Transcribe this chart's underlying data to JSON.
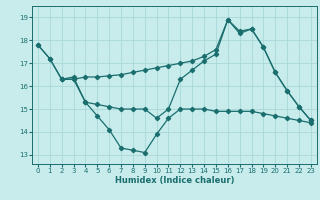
{
  "title": "",
  "xlabel": "Humidex (Indice chaleur)",
  "ylabel": "",
  "bg_color": "#c8ecec",
  "grid_color": "#a8d8d8",
  "line_color": "#1a6e6e",
  "x_ticks": [
    0,
    1,
    2,
    3,
    4,
    5,
    6,
    7,
    8,
    9,
    10,
    11,
    12,
    13,
    14,
    15,
    16,
    17,
    18,
    19,
    20,
    21,
    22,
    23
  ],
  "y_ticks": [
    13,
    14,
    15,
    16,
    17,
    18,
    19
  ],
  "xlim": [
    -0.5,
    23.5
  ],
  "ylim": [
    12.6,
    19.5
  ],
  "line1_x": [
    0,
    1,
    2,
    3,
    4,
    5,
    6,
    7,
    8,
    9,
    10,
    11,
    12,
    13,
    14,
    15,
    16,
    17,
    18,
    19,
    20,
    21,
    22,
    23
  ],
  "line1_y": [
    17.8,
    17.2,
    16.3,
    16.4,
    15.3,
    14.7,
    14.1,
    13.3,
    13.2,
    13.1,
    13.9,
    14.6,
    15.0,
    15.0,
    15.0,
    14.9,
    14.9,
    14.9,
    14.9,
    14.8,
    14.7,
    14.6,
    14.5,
    14.4
  ],
  "line2_x": [
    0,
    1,
    2,
    3,
    4,
    5,
    6,
    7,
    8,
    9,
    10,
    11,
    12,
    13,
    14,
    15,
    16,
    17,
    18,
    19,
    20,
    21,
    22,
    23
  ],
  "line2_y": [
    17.8,
    17.2,
    16.3,
    16.3,
    16.4,
    16.4,
    16.45,
    16.5,
    16.6,
    16.7,
    16.8,
    16.9,
    17.0,
    17.1,
    17.3,
    17.6,
    18.9,
    18.4,
    18.5,
    17.7,
    16.6,
    15.8,
    15.1,
    14.5
  ],
  "line3_x": [
    2,
    3,
    4,
    5,
    6,
    7,
    8,
    9,
    10,
    11,
    12,
    13,
    14,
    15,
    16,
    17,
    18,
    19,
    20,
    21,
    22,
    23
  ],
  "line3_y": [
    16.3,
    16.3,
    15.3,
    15.2,
    15.1,
    15.0,
    15.0,
    15.0,
    14.6,
    15.0,
    16.3,
    16.7,
    17.1,
    17.4,
    18.9,
    18.3,
    18.5,
    17.7,
    16.6,
    15.8,
    15.1,
    14.5
  ],
  "lw": 0.9,
  "ms": 2.2,
  "xlabel_fontsize": 6.0,
  "tick_fontsize": 5.0
}
